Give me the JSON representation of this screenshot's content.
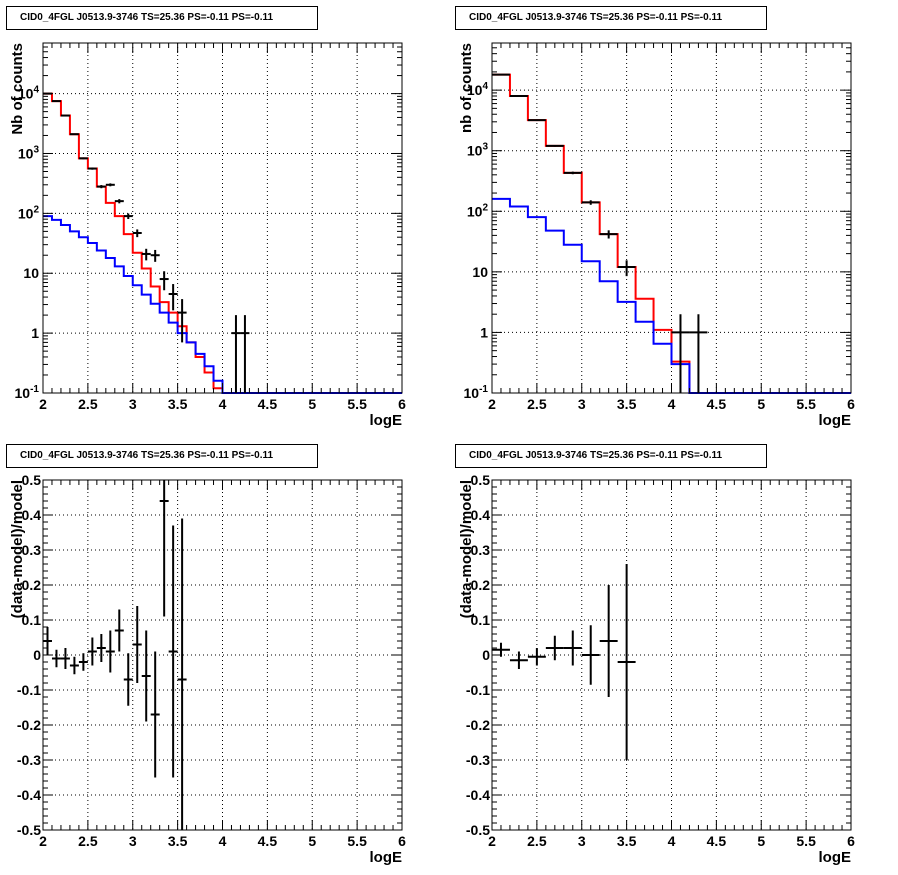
{
  "chart_data": [
    {
      "type": "step-histogram",
      "title": "CID0_4FGL J0513.9-3746 TS=25.36 PS=-0.11 PS=-0.11",
      "xlabel": "logE",
      "ylabel": "Nb of counts",
      "xlim": [
        2,
        6
      ],
      "ylim": [
        0.1,
        70000
      ],
      "yscale": "log",
      "grid": true,
      "x_ticks": [
        "2",
        "2.5",
        "3",
        "3.5",
        "4",
        "4.5",
        "5",
        "5.5",
        "6"
      ],
      "y_ticks": [
        "10^-1",
        "1",
        "10",
        "10^2",
        "10^3",
        "10^4"
      ],
      "bin_width": 0.1,
      "series": [
        {
          "color": "#ff0000",
          "edges_start": 2.0,
          "values": [
            10000,
            7500,
            4300,
            2100,
            830,
            560,
            280,
            150,
            90,
            45,
            22,
            12,
            6,
            3.3,
            2.2,
            1.3,
            0.7,
            0.4,
            0.22,
            0.12,
            0.1,
            0.1,
            0.1,
            0.1,
            0.1,
            0.1,
            0.1,
            0.1,
            0.1,
            0.1,
            0.1,
            0.1,
            0.1,
            0.1,
            0.1,
            0.1,
            0.1,
            0.1,
            0.1,
            0.1
          ]
        },
        {
          "color": "#0000ff",
          "edges_start": 2.0,
          "values": [
            90,
            78,
            64,
            50,
            40,
            32,
            24,
            18,
            13,
            9,
            6.3,
            4.4,
            3.1,
            2.2,
            1.5,
            1.0,
            0.7,
            0.45,
            0.28,
            0.16,
            0.1,
            0.1,
            0.1,
            0.1,
            0.1,
            0.1,
            0.1,
            0.1,
            0.1,
            0.1,
            0.1,
            0.1,
            0.1,
            0.1,
            0.1,
            0.1,
            0.1,
            0.1,
            0.1,
            0.1
          ]
        }
      ],
      "points": {
        "color": "#000000",
        "x": [
          2.05,
          2.15,
          2.25,
          2.35,
          2.45,
          2.55,
          2.65,
          2.75,
          2.85,
          2.95,
          3.05,
          3.15,
          3.25,
          3.35,
          3.45,
          3.55,
          3.65,
          3.75,
          4.15,
          4.25
        ],
        "y": [
          10000,
          7500,
          4300,
          2100,
          830,
          560,
          280,
          300,
          160,
          90,
          47,
          21,
          20,
          8,
          4.5,
          2.2,
          1.3,
          0.7,
          1,
          1
        ],
        "xerr": 0.05,
        "yerr_low": [
          100,
          87,
          66,
          46,
          29,
          24,
          17,
          17,
          13,
          9.5,
          6.9,
          4.6,
          4.5,
          2.8,
          2.1,
          1.5,
          1.1,
          0.8,
          0.95,
          0.95
        ],
        "yerr_high": [
          100,
          87,
          66,
          46,
          29,
          24,
          17,
          17,
          13,
          9.5,
          6.9,
          4.6,
          4.5,
          2.8,
          2.1,
          1.5,
          1.1,
          0.8,
          1,
          1
        ],
        "show": [
          true,
          true,
          true,
          true,
          true,
          true,
          true,
          true,
          true,
          true,
          true,
          true,
          true,
          true,
          true,
          true,
          false,
          false,
          true,
          true
        ]
      }
    },
    {
      "type": "step-histogram",
      "title": "CID0_4FGL J0513.9-3746 TS=25.36 PS=-0.11 PS=-0.11",
      "xlabel": "logE",
      "ylabel": "nb of counts",
      "xlim": [
        2,
        6
      ],
      "ylim": [
        0.1,
        60000
      ],
      "yscale": "log",
      "grid": true,
      "x_ticks": [
        "2",
        "2.5",
        "3",
        "3.5",
        "4",
        "4.5",
        "5",
        "5.5",
        "6"
      ],
      "y_ticks": [
        "10^-1",
        "1",
        "10",
        "10^2",
        "10^3",
        "10^4"
      ],
      "bin_width": 0.2,
      "series": [
        {
          "color": "#ff0000",
          "edges_start": 2.0,
          "values": [
            18000,
            8000,
            3200,
            1200,
            430,
            140,
            42,
            12,
            3.6,
            1.1,
            0.33,
            0.1,
            0.1,
            0.1,
            0.1,
            0.1,
            0.1,
            0.1,
            0.1,
            0.1
          ]
        },
        {
          "color": "#0000ff",
          "edges_start": 2.0,
          "values": [
            160,
            120,
            80,
            48,
            28,
            15,
            7,
            3.2,
            1.5,
            0.65,
            0.3,
            0.1,
            0.1,
            0.1,
            0.1,
            0.1,
            0.1,
            0.1,
            0.1,
            0.1
          ]
        }
      ],
      "points": {
        "color": "#000000",
        "x": [
          2.1,
          2.3,
          2.5,
          2.7,
          2.9,
          3.1,
          3.3,
          3.5,
          4.1,
          4.3
        ],
        "y": [
          18000,
          8000,
          3200,
          1200,
          430,
          140,
          42,
          12,
          1,
          1
        ],
        "xerr": 0.1,
        "yerr_low": [
          134,
          89,
          57,
          35,
          21,
          12,
          6.5,
          3.5,
          0.95,
          0.95
        ],
        "yerr_high": [
          134,
          89,
          57,
          35,
          21,
          12,
          6.5,
          3.5,
          1,
          1
        ],
        "show": [
          true,
          true,
          true,
          true,
          true,
          true,
          true,
          true,
          true,
          true
        ]
      }
    },
    {
      "type": "scatter-errorbars",
      "title": "CID0_4FGL J0513.9-3746 TS=25.36 PS=-0.11 PS=-0.11",
      "xlabel": "logE",
      "ylabel": "(data-model)/model",
      "xlim": [
        2,
        6
      ],
      "ylim": [
        -0.5,
        0.5
      ],
      "grid": true,
      "x_ticks": [
        "2",
        "2.5",
        "3",
        "3.5",
        "4",
        "4.5",
        "5",
        "5.5",
        "6"
      ],
      "y_ticks": [
        "-0.5",
        "-0.4",
        "-0.3",
        "-0.2",
        "-0.1",
        "0",
        "0.1",
        "0.2",
        "0.3",
        "0.4",
        "0.5"
      ],
      "points": {
        "color": "#000000",
        "x": [
          2.05,
          2.15,
          2.25,
          2.35,
          2.45,
          2.55,
          2.65,
          2.75,
          2.85,
          2.95,
          3.05,
          3.15,
          3.25,
          3.35,
          3.45,
          3.55
        ],
        "y": [
          0.04,
          -0.01,
          -0.01,
          -0.03,
          -0.02,
          0.01,
          0.02,
          0.01,
          0.07,
          -0.07,
          0.03,
          -0.06,
          -0.17,
          0.44,
          0.01,
          -0.07
        ],
        "xerr": 0.05,
        "yerr": [
          0.04,
          0.025,
          0.03,
          0.025,
          0.025,
          0.04,
          0.04,
          0.06,
          0.06,
          0.075,
          0.11,
          0.13,
          0.18,
          0.33,
          0.36,
          0.46
        ]
      }
    },
    {
      "type": "scatter-errorbars",
      "title": "CID0_4FGL J0513.9-3746 TS=25.36 PS=-0.11 PS=-0.11",
      "xlabel": "logE",
      "ylabel": "(data-model)/model",
      "xlim": [
        2,
        6
      ],
      "ylim": [
        -0.5,
        0.5
      ],
      "grid": true,
      "x_ticks": [
        "2",
        "2.5",
        "3",
        "3.5",
        "4",
        "4.5",
        "5",
        "5.5",
        "6"
      ],
      "y_ticks": [
        "-0.5",
        "-0.4",
        "-0.3",
        "-0.2",
        "-0.1",
        "0",
        "0.1",
        "0.2",
        "0.3",
        "0.4",
        "0.5"
      ],
      "points": {
        "color": "#000000",
        "x": [
          2.1,
          2.3,
          2.5,
          2.7,
          2.9,
          3.1,
          3.3,
          3.5
        ],
        "y": [
          0.015,
          -0.015,
          -0.005,
          0.02,
          0.02,
          0.0,
          0.04,
          -0.02
        ],
        "xerr": 0.1,
        "yerr": [
          0.02,
          0.025,
          0.025,
          0.035,
          0.05,
          0.085,
          0.16,
          0.28
        ]
      }
    }
  ]
}
